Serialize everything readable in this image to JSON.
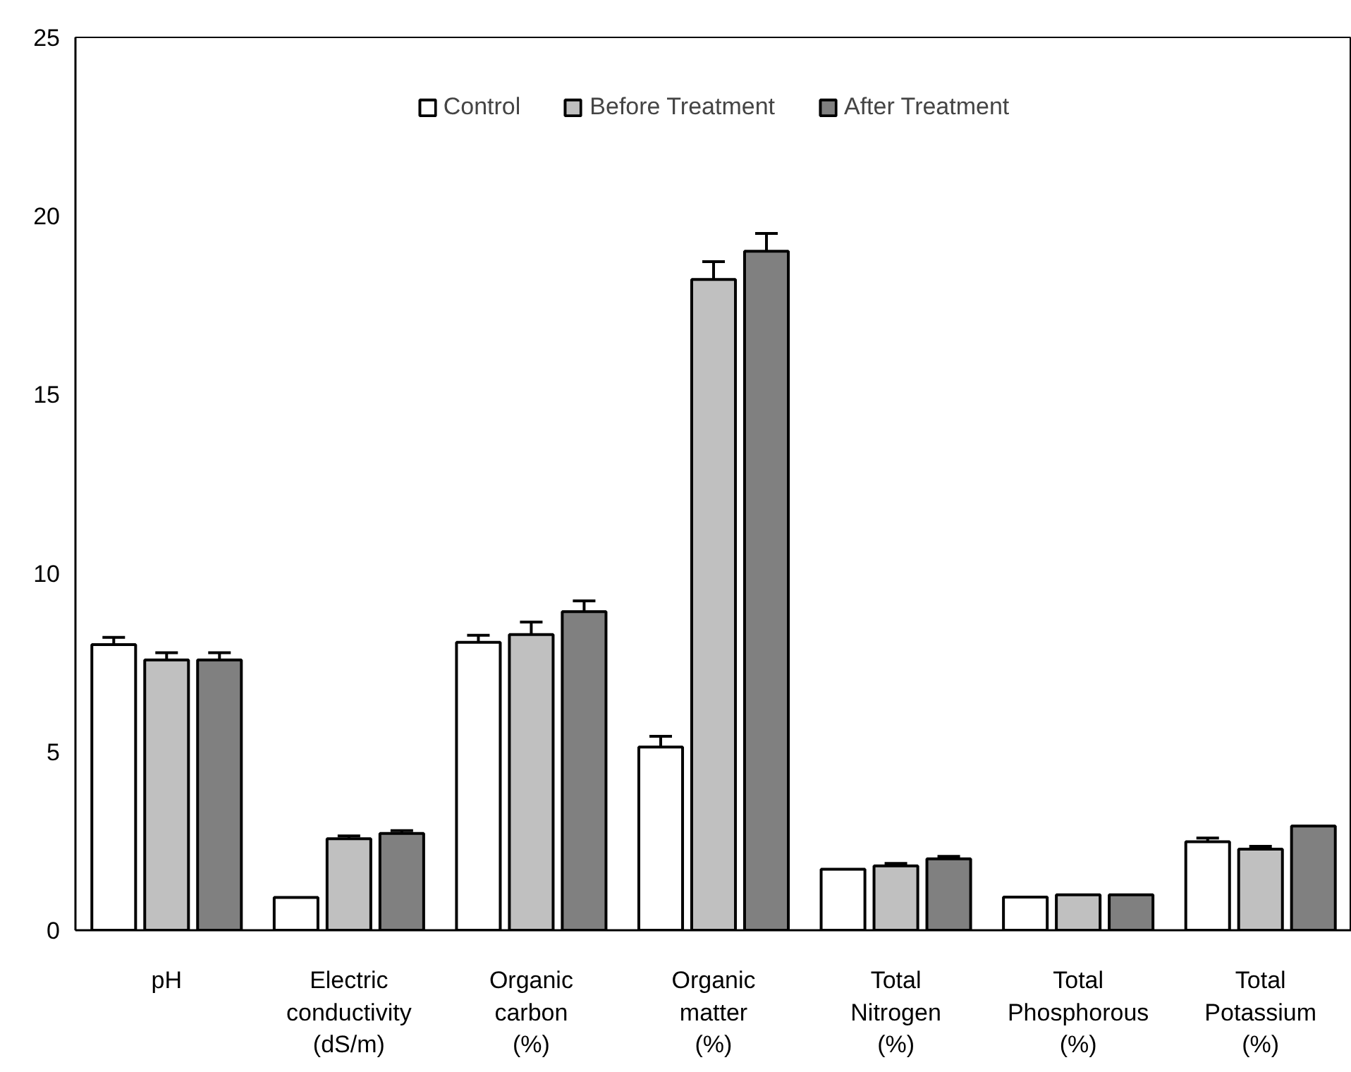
{
  "chart_data": {
    "type": "bar",
    "categories": [
      "pH",
      "Electric\nconductivity\n(dS/m)",
      "Organic\ncarbon\n(%)",
      "Organic\nmatter\n(%)",
      "Total\nNitrogen\n(%)",
      "Total\nPhosphorous\n(%)",
      "Total\nPotassium\n(%)"
    ],
    "series": [
      {
        "name": "Control",
        "color": "#ffffff",
        "values": [
          8.0,
          0.92,
          8.06,
          5.13,
          1.71,
          0.93,
          2.48
        ],
        "errors": [
          0.2,
          null,
          0.2,
          0.3,
          null,
          null,
          0.1
        ]
      },
      {
        "name": "Before Treatment",
        "color": "#c0c0c0",
        "values": [
          7.57,
          2.56,
          8.28,
          18.22,
          1.8,
          0.99,
          2.27
        ],
        "errors": [
          0.2,
          0.08,
          0.35,
          0.5,
          0.07,
          null,
          0.08
        ]
      },
      {
        "name": "After Treatment",
        "color": "#808080",
        "values": [
          7.57,
          2.71,
          8.92,
          19.01,
          2.0,
          0.99,
          2.92
        ],
        "errors": [
          0.2,
          0.08,
          0.3,
          0.5,
          0.07,
          null,
          null
        ]
      }
    ],
    "ylim": [
      0,
      25
    ],
    "yticks": [
      0,
      5,
      10,
      15,
      20,
      25
    ],
    "grid": false,
    "legend": "top"
  }
}
